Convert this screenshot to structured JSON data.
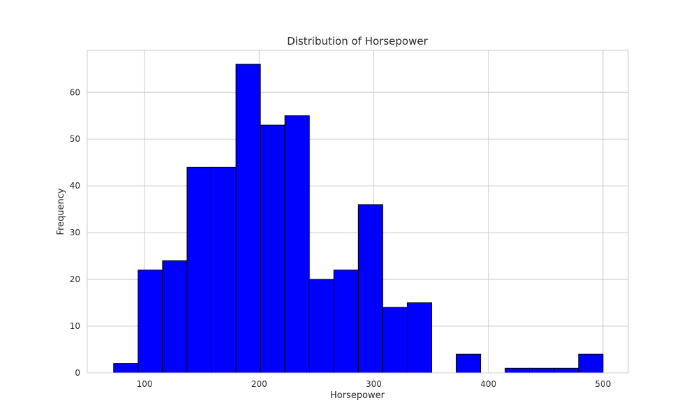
{
  "chart_data": {
    "type": "bar",
    "subtype": "histogram",
    "title": "Distribution of Horsepower",
    "xlabel": "Horsepower",
    "ylabel": "Frequency",
    "xlim": [
      50,
      522
    ],
    "ylim": [
      0,
      69
    ],
    "x_ticks": [
      100,
      200,
      300,
      400,
      500
    ],
    "y_ticks": [
      0,
      10,
      20,
      30,
      40,
      50,
      60
    ],
    "bin_start": 73,
    "bin_width": 21.35,
    "counts": [
      2,
      22,
      24,
      44,
      44,
      66,
      53,
      55,
      20,
      22,
      36,
      14,
      15,
      0,
      4,
      0,
      1,
      1,
      1,
      4
    ],
    "bar_color": "#0000ff",
    "edge_color": "#000000",
    "grid": true
  }
}
